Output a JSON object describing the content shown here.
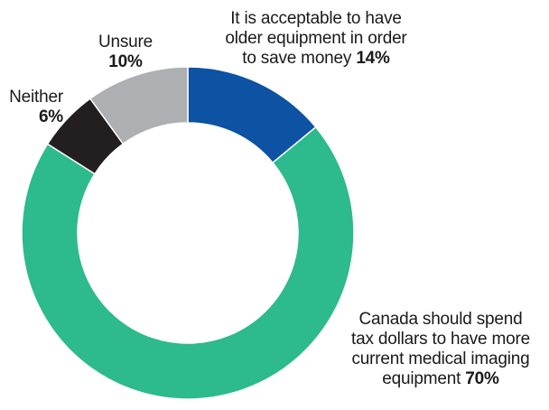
{
  "chart_data": {
    "type": "pie",
    "donut": true,
    "title": "",
    "slices": [
      {
        "label_lines": [
          "It is acceptable to have",
          "older equipment in order",
          "to save money"
        ],
        "value_text": "14%",
        "value": 14,
        "color": "#0d52a3"
      },
      {
        "label_lines": [
          "Canada should spend",
          "tax dollars to have more",
          "current medical imaging",
          "equipment"
        ],
        "value_text": "70%",
        "value": 70,
        "color": "#2dba8c"
      },
      {
        "label_lines": [
          "Neither"
        ],
        "value_text": "6%",
        "value": 6,
        "color": "#231f20"
      },
      {
        "label_lines": [
          "Unsure"
        ],
        "value_text": "10%",
        "value": 10,
        "color": "#adafb2"
      }
    ],
    "start_angle_deg": 0,
    "direction": "clockwise",
    "legend": "none"
  }
}
